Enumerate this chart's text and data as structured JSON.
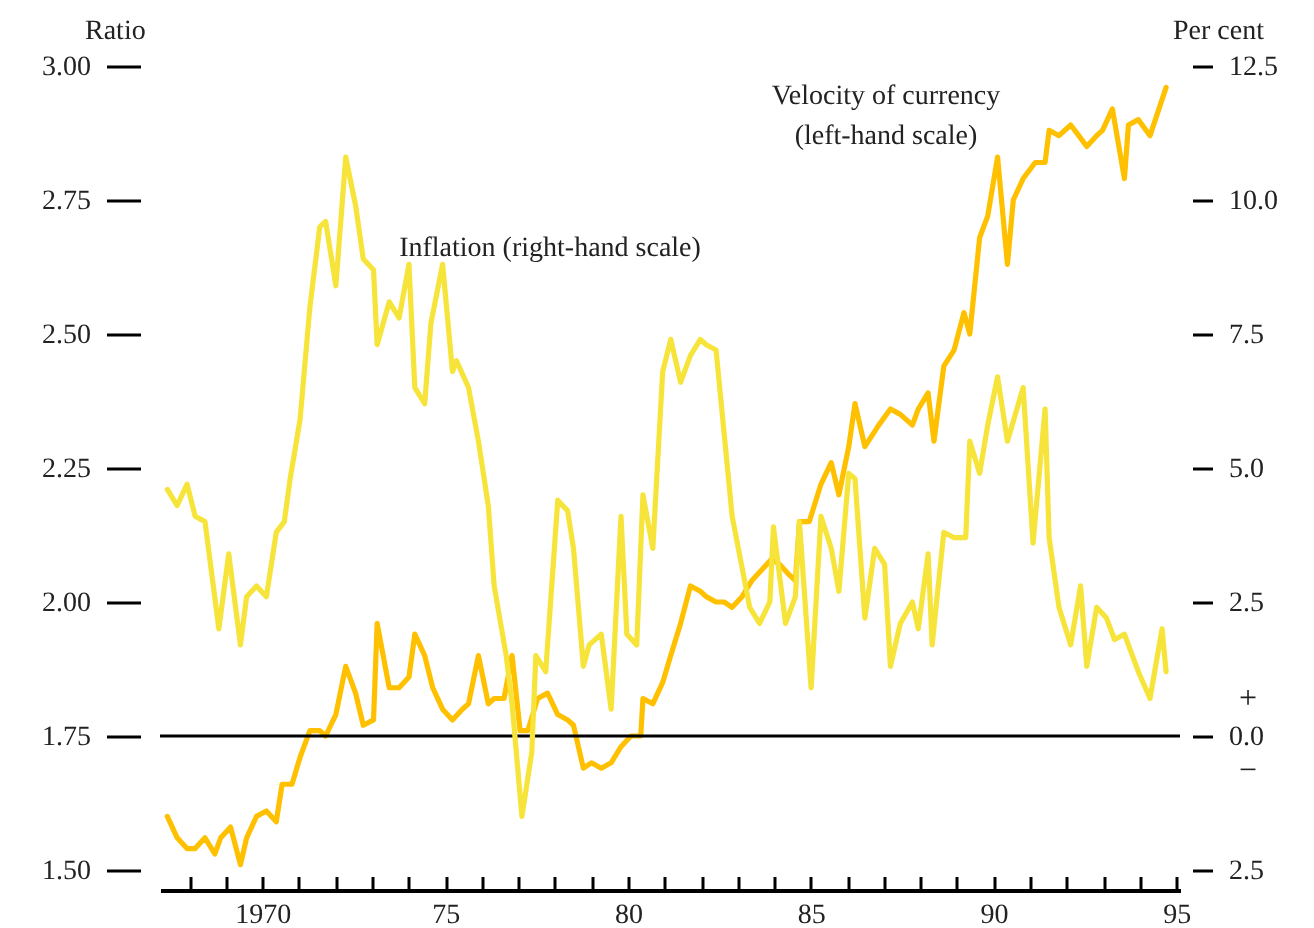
{
  "chart_data": {
    "type": "line",
    "ylabel": "Ratio",
    "y2label": "Per cent",
    "xlim": [
      1967.2,
      1995.1
    ],
    "xticks": [
      {
        "value": 1968,
        "label": null
      },
      {
        "value": 1969,
        "label": null
      },
      {
        "value": 1970,
        "label": "1970"
      },
      {
        "value": 1971,
        "label": null
      },
      {
        "value": 1972,
        "label": null
      },
      {
        "value": 1973,
        "label": null
      },
      {
        "value": 1974,
        "label": null
      },
      {
        "value": 1975,
        "label": "75"
      },
      {
        "value": 1976,
        "label": null
      },
      {
        "value": 1977,
        "label": null
      },
      {
        "value": 1978,
        "label": null
      },
      {
        "value": 1979,
        "label": null
      },
      {
        "value": 1980,
        "label": "80"
      },
      {
        "value": 1981,
        "label": null
      },
      {
        "value": 1982,
        "label": null
      },
      {
        "value": 1983,
        "label": null
      },
      {
        "value": 1984,
        "label": null
      },
      {
        "value": 1985,
        "label": "85"
      },
      {
        "value": 1986,
        "label": null
      },
      {
        "value": 1987,
        "label": null
      },
      {
        "value": 1988,
        "label": null
      },
      {
        "value": 1989,
        "label": null
      },
      {
        "value": 1990,
        "label": "90"
      },
      {
        "value": 1991,
        "label": null
      },
      {
        "value": 1992,
        "label": null
      },
      {
        "value": 1993,
        "label": null
      },
      {
        "value": 1994,
        "label": null
      },
      {
        "value": 1995,
        "label": "95"
      }
    ],
    "ylim": [
      1.5,
      3.0
    ],
    "yticks": [
      {
        "value": 1.5,
        "label": "1.50"
      },
      {
        "value": 1.75,
        "label": "1.75"
      },
      {
        "value": 2.0,
        "label": "2.00"
      },
      {
        "value": 2.25,
        "label": "2.25"
      },
      {
        "value": 2.5,
        "label": "2.50"
      },
      {
        "value": 2.75,
        "label": "2.75"
      },
      {
        "value": 3.0,
        "label": "3.00"
      }
    ],
    "y2lim": [
      -2.5,
      12.5
    ],
    "y2ticks": [
      {
        "value": -2.5,
        "label": "2.5"
      },
      {
        "value": 0,
        "label": "0.0"
      },
      {
        "value": 2.5,
        "label": "2.5"
      },
      {
        "value": 5,
        "label": "5.0"
      },
      {
        "value": 7.5,
        "label": "7.5"
      },
      {
        "value": 10,
        "label": "10.0"
      },
      {
        "value": 12.5,
        "label": "12.5"
      }
    ],
    "series": [
      {
        "name": "Velocity of currency (left-hand scale)",
        "color": "#ffc000",
        "x": [
          1967.4,
          1967.67,
          1967.94,
          1968.16,
          1968.43,
          1968.7,
          1968.86,
          1969.13,
          1969.4,
          1969.57,
          1969.84,
          1970.11,
          1970.38,
          1970.54,
          1970.81,
          1971.03,
          1971.3,
          1971.57,
          1971.73,
          1972.01,
          1972.28,
          1972.55,
          1972.76,
          1973.04,
          1973.14,
          1973.47,
          1973.74,
          1974.01,
          1974.17,
          1974.44,
          1974.66,
          1974.93,
          1975.2,
          1975.47,
          1975.64,
          1975.91,
          1976.18,
          1976.34,
          1976.61,
          1976.83,
          1977.05,
          1977.26,
          1977.53,
          1977.8,
          1978.08,
          1978.35,
          1978.51,
          1978.78,
          1979.0,
          1979.27,
          1979.54,
          1979.81,
          1980.08,
          1980.35,
          1980.41,
          1980.68,
          1980.95,
          1981.17,
          1981.44,
          1981.71,
          1981.98,
          1982.14,
          1982.41,
          1982.63,
          1982.85,
          1983.12,
          1983.39,
          1983.66,
          1983.93,
          1984.15,
          1984.42,
          1984.58,
          1984.69,
          1984.96,
          1985.28,
          1985.56,
          1985.77,
          1986.04,
          1986.21,
          1986.48,
          1986.86,
          1987.18,
          1987.45,
          1987.78,
          1987.94,
          1988.21,
          1988.37,
          1988.64,
          1988.92,
          1989.19,
          1989.35,
          1989.62,
          1989.84,
          1990.11,
          1990.38,
          1990.54,
          1990.81,
          1991.14,
          1991.41,
          1991.52,
          1991.79,
          1992.11,
          1992.33,
          1992.55,
          1992.82,
          1992.98,
          1993.25,
          1993.58,
          1993.69,
          1993.96,
          1994.28,
          1994.72
        ],
        "values": [
          1.6,
          1.56,
          1.54,
          1.54,
          1.56,
          1.53,
          1.56,
          1.58,
          1.51,
          1.56,
          1.6,
          1.61,
          1.59,
          1.66,
          1.66,
          1.71,
          1.76,
          1.76,
          1.75,
          1.79,
          1.88,
          1.83,
          1.77,
          1.78,
          1.96,
          1.84,
          1.84,
          1.86,
          1.94,
          1.9,
          1.84,
          1.8,
          1.78,
          1.8,
          1.81,
          1.9,
          1.81,
          1.82,
          1.82,
          1.9,
          1.76,
          1.76,
          1.82,
          1.83,
          1.79,
          1.78,
          1.77,
          1.69,
          1.7,
          1.69,
          1.7,
          1.73,
          1.75,
          1.75,
          1.82,
          1.81,
          1.85,
          1.9,
          1.96,
          2.03,
          2.02,
          2.01,
          2.0,
          2.0,
          1.99,
          2.01,
          2.04,
          2.06,
          2.08,
          2.07,
          2.05,
          2.04,
          2.15,
          2.15,
          2.22,
          2.26,
          2.2,
          2.29,
          2.37,
          2.29,
          2.33,
          2.36,
          2.35,
          2.33,
          2.36,
          2.39,
          2.3,
          2.44,
          2.47,
          2.54,
          2.5,
          2.68,
          2.72,
          2.83,
          2.63,
          2.75,
          2.79,
          2.82,
          2.82,
          2.88,
          2.87,
          2.89,
          2.87,
          2.85,
          2.87,
          2.88,
          2.92,
          2.79,
          2.89,
          2.9,
          2.87,
          2.96
        ]
      },
      {
        "name": "Inflation (right-hand scale)",
        "color": "#f7e43a",
        "axis": "y2",
        "x": [
          1967.4,
          1967.67,
          1967.94,
          1968.16,
          1968.43,
          1968.81,
          1969.08,
          1969.4,
          1969.57,
          1969.84,
          1970.11,
          1970.38,
          1970.6,
          1970.76,
          1971.03,
          1971.3,
          1971.57,
          1971.73,
          1972.01,
          1972.28,
          1972.55,
          1972.76,
          1973.04,
          1973.14,
          1973.47,
          1973.74,
          1974.01,
          1974.17,
          1974.44,
          1974.61,
          1974.93,
          1975.2,
          1975.31,
          1975.64,
          1975.91,
          1976.18,
          1976.34,
          1976.67,
          1976.83,
          1977.1,
          1977.37,
          1977.48,
          1977.75,
          1978.08,
          1978.35,
          1978.51,
          1978.78,
          1978.94,
          1979.27,
          1979.54,
          1979.81,
          1979.97,
          1980.24,
          1980.41,
          1980.68,
          1980.95,
          1981.17,
          1981.44,
          1981.71,
          1981.98,
          1982.14,
          1982.41,
          1982.85,
          1983.33,
          1983.6,
          1983.88,
          1983.98,
          1984.31,
          1984.58,
          1984.69,
          1985.01,
          1985.28,
          1985.56,
          1985.77,
          1986.04,
          1986.21,
          1986.48,
          1986.75,
          1987.02,
          1987.18,
          1987.45,
          1987.78,
          1987.94,
          1988.21,
          1988.32,
          1988.64,
          1988.92,
          1989.24,
          1989.35,
          1989.62,
          1989.84,
          1990.11,
          1990.38,
          1990.81,
          1991.08,
          1991.41,
          1991.52,
          1991.79,
          1992.11,
          1992.38,
          1992.55,
          1992.82,
          1993.09,
          1993.31,
          1993.58,
          1993.96,
          1994.28,
          1994.61,
          1994.72
        ],
        "values": [
          4.6,
          4.3,
          4.7,
          4.1,
          4.0,
          2.0,
          3.4,
          1.7,
          2.6,
          2.8,
          2.6,
          3.8,
          4.0,
          4.8,
          5.9,
          8.0,
          9.5,
          9.6,
          8.4,
          10.8,
          9.9,
          8.9,
          8.7,
          7.3,
          8.1,
          7.8,
          8.8,
          6.5,
          6.2,
          7.7,
          8.8,
          6.8,
          7.0,
          6.5,
          5.5,
          4.3,
          2.8,
          1.5,
          0.6,
          -1.5,
          -0.3,
          1.5,
          1.2,
          4.4,
          4.2,
          3.5,
          1.3,
          1.7,
          1.9,
          0.5,
          4.1,
          1.9,
          1.7,
          4.5,
          3.5,
          6.8,
          7.4,
          6.6,
          7.1,
          7.4,
          7.3,
          7.2,
          4.1,
          2.4,
          2.1,
          2.5,
          3.9,
          2.1,
          2.6,
          4.0,
          0.9,
          4.1,
          3.5,
          2.7,
          4.9,
          4.8,
          2.2,
          3.5,
          3.2,
          1.3,
          2.1,
          2.5,
          2.0,
          3.4,
          1.7,
          3.8,
          3.7,
          3.7,
          5.5,
          4.9,
          5.8,
          6.7,
          5.5,
          6.5,
          3.6,
          6.1,
          3.7,
          2.4,
          1.7,
          2.8,
          1.3,
          2.4,
          2.2,
          1.8,
          1.9,
          1.2,
          0.7,
          2.0,
          1.2
        ]
      }
    ],
    "ref_lines": [
      {
        "axis": "y",
        "value": 1.75,
        "color": "#000000"
      }
    ],
    "annotations": [
      "+",
      "−"
    ],
    "grid": false,
    "legend": false,
    "marker": "none",
    "line_style": "solid"
  }
}
